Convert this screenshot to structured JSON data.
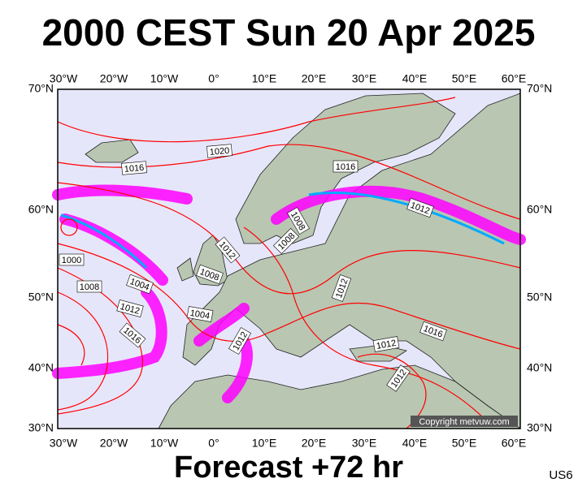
{
  "header": {
    "title": "2000 CEST Sun 20 Apr 2025"
  },
  "axes": {
    "longitudes": [
      "30°W",
      "20°W",
      "10°W",
      "0°",
      "10°E",
      "20°E",
      "30°E",
      "40°E",
      "50°E",
      "60°E"
    ],
    "latitudes": [
      "70°N",
      "60°N",
      "50°N",
      "40°N",
      "30°N"
    ]
  },
  "isobar_labels": [
    1020,
    1016,
    1016,
    1012,
    1008,
    1008,
    1012,
    1008,
    1004,
    1000,
    1008,
    1012,
    1016,
    1004,
    1012,
    1012,
    1016,
    1012,
    1012
  ],
  "copyright": "Copyright metvuw.com",
  "footer": {
    "forecast": "Forecast +72 hr",
    "code": "US6"
  }
}
